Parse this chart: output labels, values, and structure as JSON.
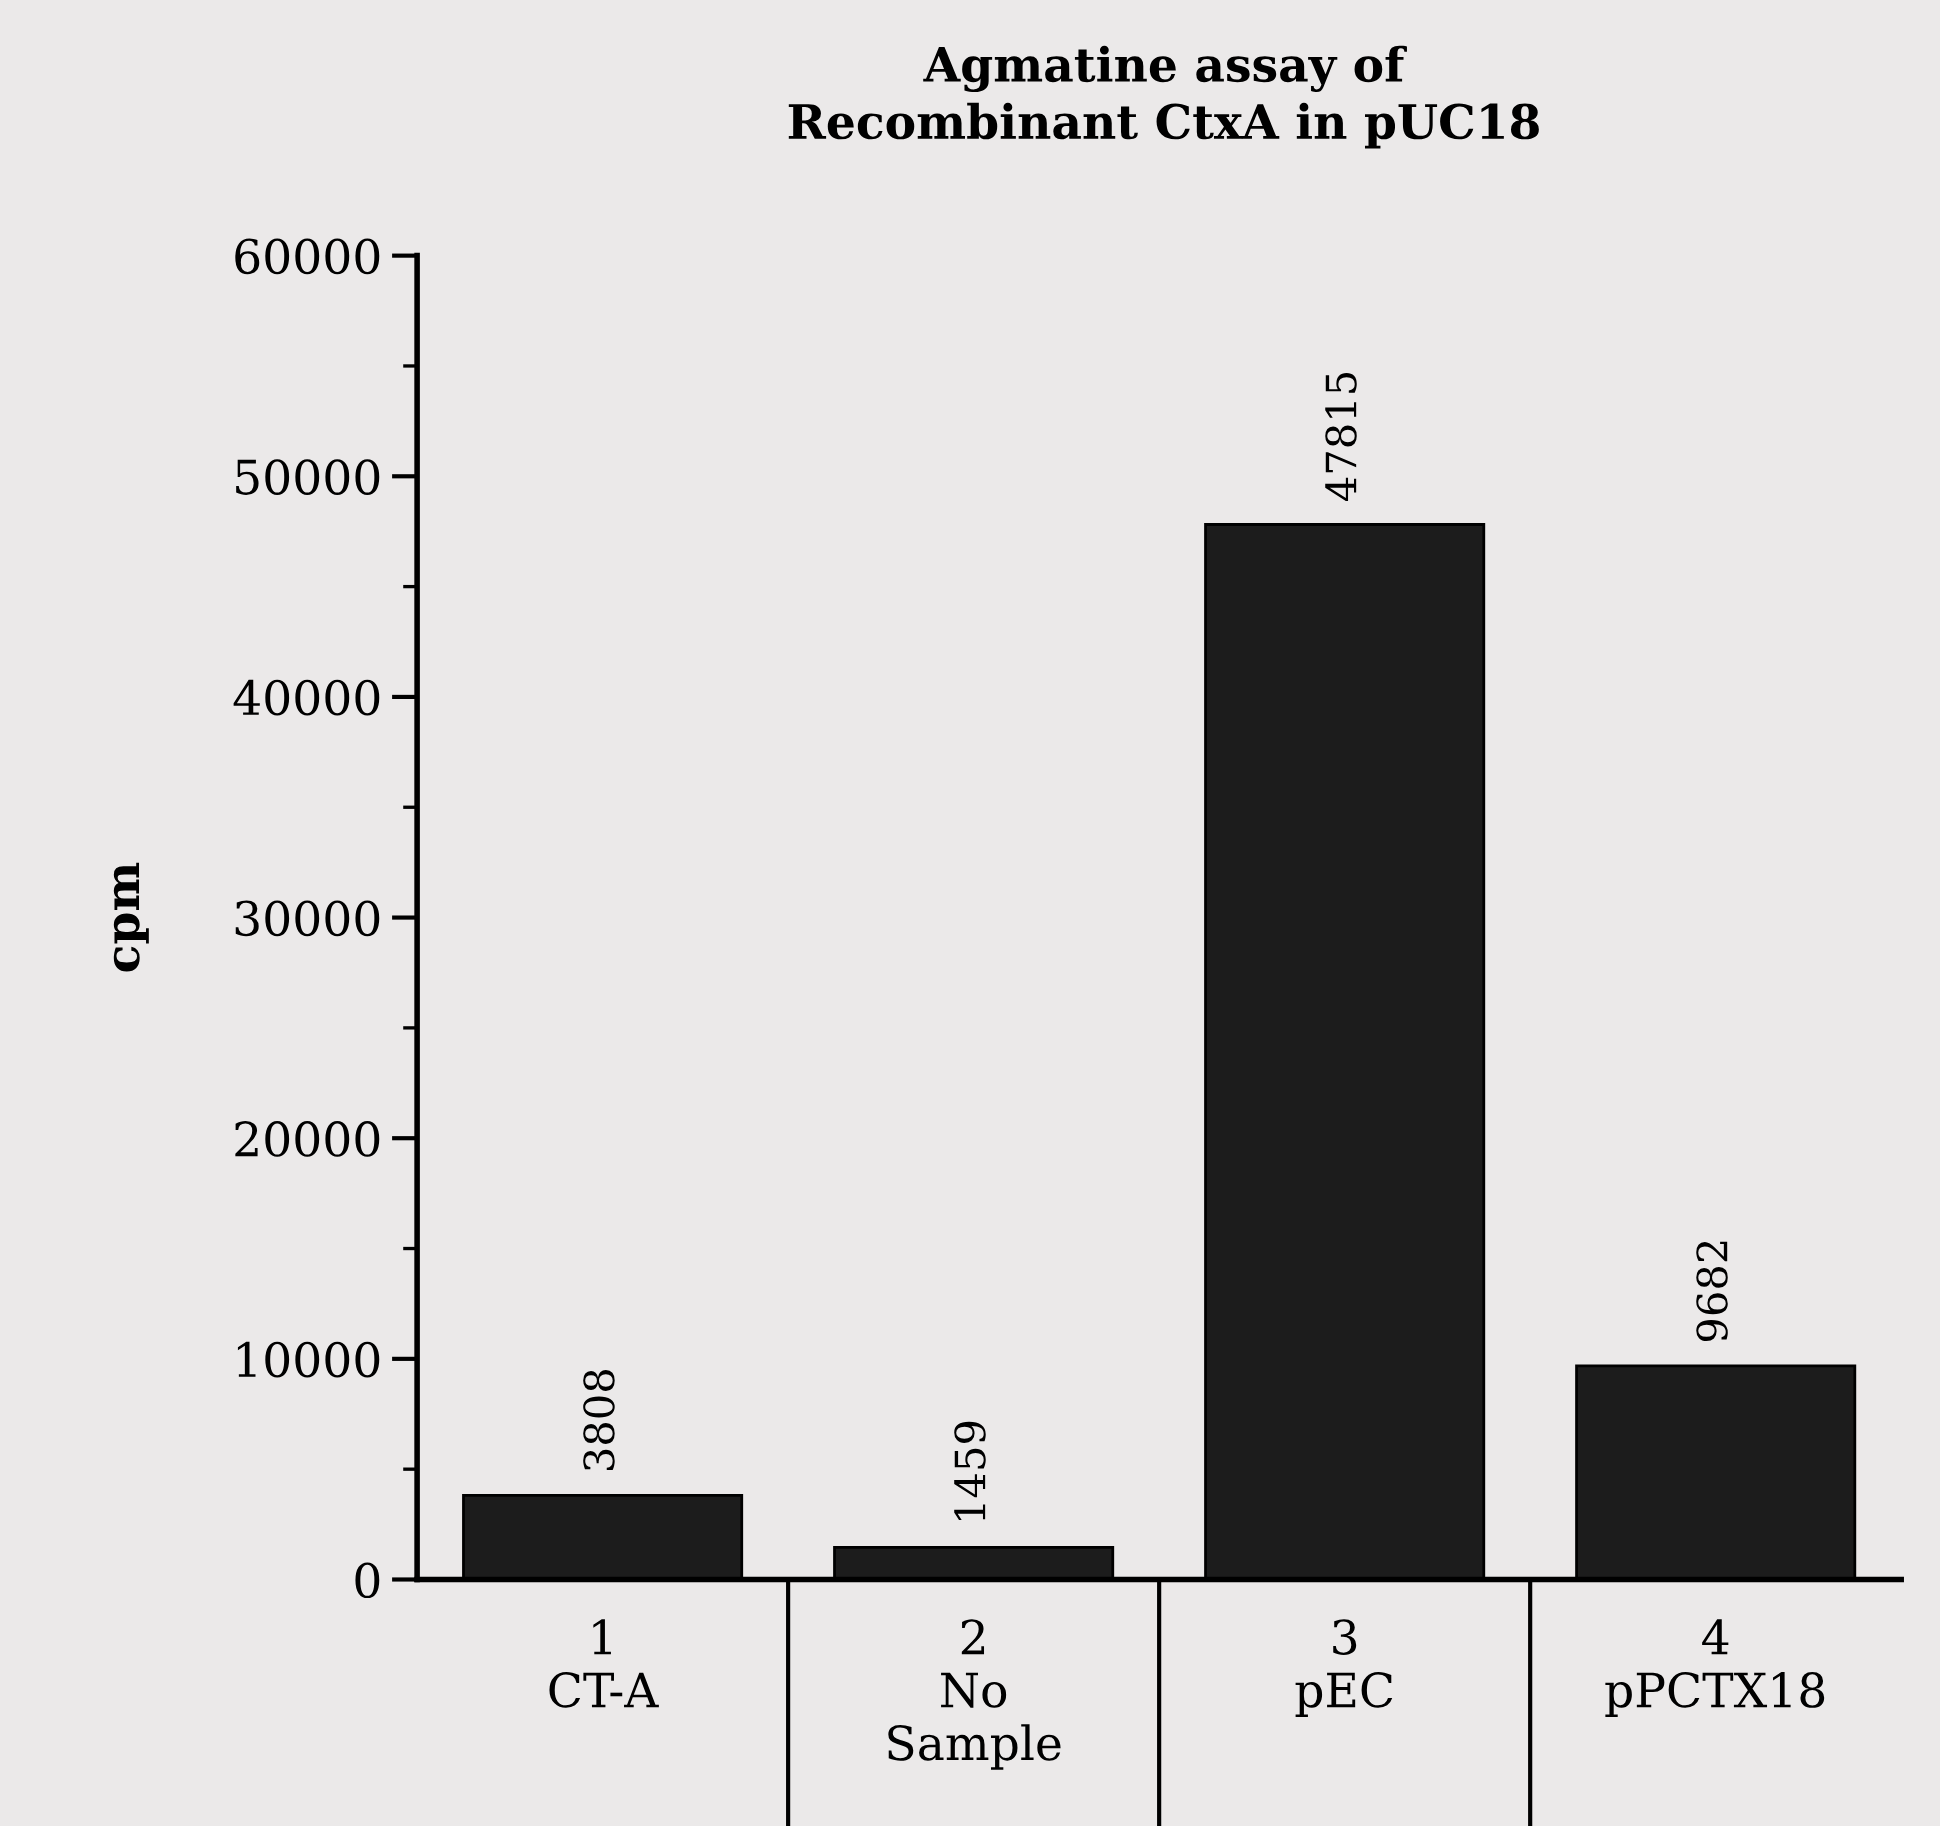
{
  "chart_data": {
    "type": "bar",
    "title": "Agmatine assay of\nRecombinant CtxA in pUC18",
    "ylabel": "cpm",
    "categories": [
      "1\nCT-A",
      "2\nNo\nSample",
      "3\npEC",
      "4\npPCTX18"
    ],
    "values": [
      3808,
      1459,
      47815,
      9682
    ],
    "color": "#1c1c1c",
    "ylim": [
      0,
      60000
    ],
    "yticks": [
      0,
      10000,
      20000,
      30000,
      40000,
      50000,
      60000
    ],
    "data_labels": true,
    "grid": false,
    "legend": false
  }
}
